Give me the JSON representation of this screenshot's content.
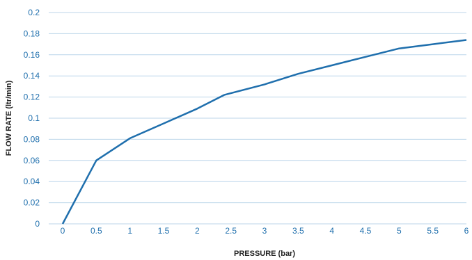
{
  "chart_data": {
    "type": "line",
    "title": "",
    "xlabel": "PRESSURE (bar)",
    "ylabel": "FLOW RATE (ltr/min)",
    "x_ticks": [
      "0",
      "0.5",
      "1",
      "1.5",
      "2",
      "2.5",
      "3",
      "3.5",
      "4",
      "4.5",
      "5",
      "5.5",
      "6"
    ],
    "y_ticks": [
      "0",
      "0.02",
      "0.04",
      "0.06",
      "0.08",
      "0.1",
      "0.12",
      "0.14",
      "0.16",
      "0.18",
      "0.2"
    ],
    "xlim": [
      0,
      6
    ],
    "ylim": [
      0,
      0.2
    ],
    "grid": "horizontal",
    "legend": "none",
    "series": [
      {
        "color": "#1f6fad",
        "x": [
          0,
          0.5,
          1,
          1.5,
          2,
          2.4,
          3,
          3.5,
          4,
          4.5,
          5,
          5.5,
          6
        ],
        "y": [
          0,
          0.06,
          0.081,
          0.095,
          0.109,
          0.122,
          0.132,
          0.142,
          0.15,
          0.158,
          0.166,
          0.17,
          0.174
        ]
      }
    ],
    "colors": {
      "line": "#1f6fad",
      "tick_text": "#1f6fad",
      "grid": "#bcd6ea",
      "axis_title": "#222222"
    }
  }
}
